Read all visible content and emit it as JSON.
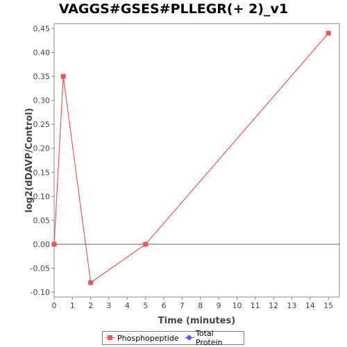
{
  "chart_data": {
    "type": "line",
    "title": "VAGGS#GSES#PLLEGR(+ 2)_v1",
    "xlabel": "Time (minutes)",
    "ylabel": "log2(dDAVP/Control)",
    "xlim": [
      0,
      15.6
    ],
    "ylim": [
      -0.11,
      0.46
    ],
    "x_ticks": [
      0,
      1,
      2,
      3,
      4,
      5,
      6,
      7,
      8,
      9,
      10,
      11,
      12,
      13,
      14,
      15
    ],
    "y_ticks": [
      -0.1,
      -0.05,
      0.0,
      0.05,
      0.1,
      0.15,
      0.2,
      0.25,
      0.3,
      0.35,
      0.4,
      0.45
    ],
    "y_tick_labels": [
      "-0.10",
      "-0.05",
      "0.00",
      "0.05",
      "0.10",
      "0.15",
      "0.20",
      "0.25",
      "0.30",
      "0.35",
      "0.40",
      "0.45"
    ],
    "zero_line": true,
    "grid": false,
    "legend_position": "bottom",
    "series": [
      {
        "name": "Phosphopeptide",
        "color": "#e8585a",
        "marker": "square",
        "x": [
          0,
          0.5,
          2,
          5,
          15
        ],
        "y": [
          0.0,
          0.35,
          -0.08,
          0.0,
          0.44
        ]
      },
      {
        "name": "Total Protein",
        "color": "#5a5aee",
        "marker": "circle",
        "x": [],
        "y": []
      }
    ]
  }
}
